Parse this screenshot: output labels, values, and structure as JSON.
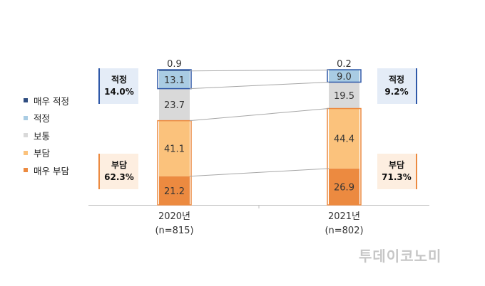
{
  "chart_data": {
    "type": "bar",
    "stacked": true,
    "categories": [
      "2020년\n(n=815)",
      "2021년\n(n=802)"
    ],
    "category_year": [
      "2020년",
      "2021년"
    ],
    "category_n": [
      "(n=815)",
      "(n=802)"
    ],
    "series": [
      {
        "name": "매우 적정",
        "color": "#2f4d80",
        "values": [
          0.9,
          0.2
        ]
      },
      {
        "name": "적정",
        "color": "#a9cce3",
        "values": [
          13.1,
          9.0
        ]
      },
      {
        "name": "보통",
        "color": "#d9d9d9",
        "values": [
          23.7,
          19.5
        ]
      },
      {
        "name": "부담",
        "color": "#fbc27c",
        "values": [
          41.1,
          44.4
        ]
      },
      {
        "name": "매우 부담",
        "color": "#ec8a40",
        "values": [
          21.2,
          26.9
        ]
      }
    ],
    "value_labels": [
      [
        "0.9",
        "13.1",
        "23.7",
        "41.1",
        "21.2"
      ],
      [
        "0.2",
        "9.0",
        "19.5",
        "44.4",
        "26.9"
      ]
    ],
    "ylim": [
      0,
      100
    ],
    "legend_position": "left",
    "grid": false,
    "annotations": {
      "appropriate_label": "적정",
      "appropriate_values": [
        "14.0%",
        "9.2%"
      ],
      "burden_label": "부담",
      "burden_values": [
        "62.3%",
        "71.3%"
      ],
      "appropriate_color": "#2e58a8",
      "burden_color": "#ec8a40"
    }
  },
  "watermark": "투데이코노미"
}
